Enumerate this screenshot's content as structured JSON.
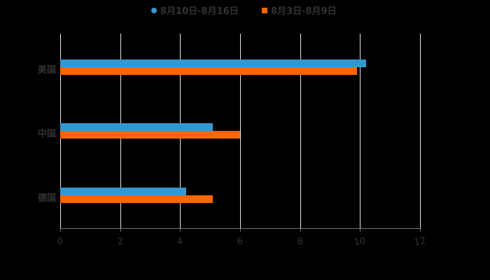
{
  "chart_data": {
    "type": "bar",
    "orientation": "horizontal",
    "title": "",
    "xlabel": "",
    "ylabel": "",
    "categories": [
      "美国",
      "中国",
      "德国"
    ],
    "series": [
      {
        "name": "8月10日-8月16日",
        "color": "#3398d1",
        "values": [
          10.2,
          5.1,
          4.2
        ]
      },
      {
        "name": "8月3日-8月9日",
        "color": "#ff6600",
        "values": [
          9.9,
          6.0,
          5.1
        ]
      }
    ],
    "xlim": [
      0,
      12
    ],
    "x_ticks": [
      "0",
      "2",
      "4",
      "6",
      "8",
      "10",
      "12"
    ],
    "grid": true,
    "legend_position": "top"
  },
  "legend": {
    "items": [
      {
        "label": "8月10日-8月16日",
        "color": "#3398d1",
        "marker": "circle"
      },
      {
        "label": "8月3日-8月9日",
        "color": "#ff6600",
        "marker": "square"
      }
    ]
  }
}
